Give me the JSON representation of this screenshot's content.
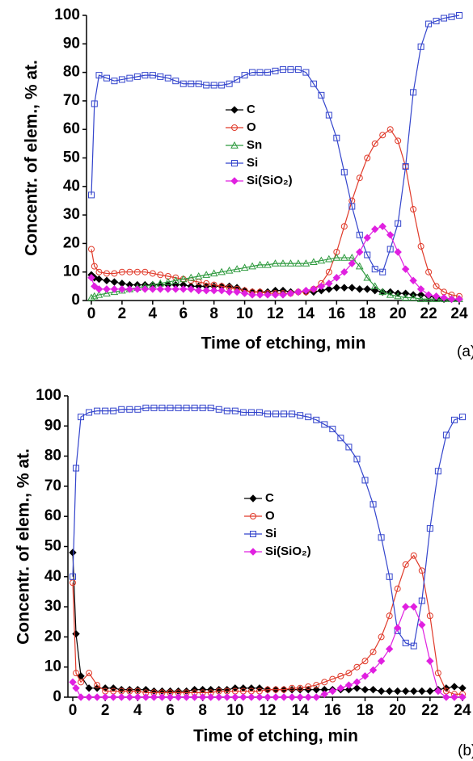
{
  "chart_data": [
    {
      "type": "line",
      "panel_label": "(a)",
      "xlabel": "Time of etching, min",
      "ylabel": "Concentr. of elem., % at.",
      "x": [
        0,
        0.2,
        0.5,
        1,
        1.5,
        2,
        2.5,
        3,
        3.5,
        4,
        4.5,
        5,
        5.5,
        6,
        6.5,
        7,
        7.5,
        8,
        8.5,
        9,
        9.5,
        10,
        10.5,
        11,
        11.5,
        12,
        12.5,
        13,
        13.5,
        14,
        14.5,
        15,
        15.5,
        16,
        16.5,
        17,
        17.5,
        18,
        18.5,
        19,
        19.5,
        20,
        20.5,
        21,
        21.5,
        22,
        22.5,
        23,
        23.5,
        24
      ],
      "xlim": [
        0,
        24
      ],
      "xticks": [
        0,
        2,
        4,
        6,
        8,
        10,
        12,
        14,
        16,
        18,
        20,
        22,
        24
      ],
      "ylim": [
        0,
        100
      ],
      "yticks": [
        0,
        10,
        20,
        30,
        40,
        50,
        60,
        70,
        80,
        90,
        100
      ],
      "legend": "center",
      "series": [
        {
          "name": "C",
          "color": "#000000",
          "marker": "diamond",
          "values": [
            9,
            8,
            7.5,
            7,
            6.5,
            6,
            5.5,
            5.5,
            5.5,
            5.5,
            5.5,
            5.5,
            5.5,
            5.5,
            5,
            5,
            5,
            5,
            5,
            5,
            4.5,
            3.5,
            3,
            3,
            3,
            3.5,
            3.5,
            3,
            3,
            3,
            3,
            3.5,
            4,
            4.5,
            4.5,
            4.5,
            4,
            4,
            3.5,
            3,
            3,
            2.5,
            2.5,
            2,
            2,
            1.5,
            1,
            0.5,
            0.5,
            0.5
          ]
        },
        {
          "name": "O",
          "color": "#e03a2a",
          "marker": "circle",
          "values": [
            18,
            12,
            10,
            9.5,
            9.5,
            10,
            10,
            10,
            10,
            9.5,
            9,
            8.5,
            8,
            7.5,
            7,
            6.5,
            6,
            5.5,
            5,
            4.5,
            4,
            3.5,
            3,
            3,
            2.5,
            2.5,
            2.5,
            2.5,
            3,
            3,
            4,
            6,
            10,
            17,
            26,
            35,
            43,
            50,
            55,
            58,
            60,
            56,
            47,
            32,
            19,
            10,
            5,
            3,
            2,
            1.5
          ]
        },
        {
          "name": "Sn",
          "color": "#2e9a3e",
          "marker": "triangle",
          "values": [
            1,
            1.5,
            2,
            2.5,
            3,
            3.5,
            4,
            4.5,
            5,
            5.5,
            6,
            6.5,
            7,
            7.5,
            8,
            8.5,
            9,
            9.5,
            10,
            10.5,
            11,
            11.5,
            12,
            12.5,
            12.5,
            13,
            13,
            13,
            13,
            13,
            13.5,
            14,
            14.5,
            15,
            15,
            15,
            12,
            8,
            5,
            3,
            2,
            1.5,
            1,
            1,
            0.5,
            0.5,
            0.5,
            0.5,
            0.5,
            0.5
          ]
        },
        {
          "name": "Si",
          "color": "#3344cc",
          "marker": "square",
          "values": [
            37,
            69,
            79,
            78,
            77,
            77.5,
            78,
            78.5,
            79,
            79,
            78.5,
            78,
            77,
            76,
            76,
            76,
            75.5,
            75.5,
            75.5,
            76,
            77.5,
            79,
            80,
            80,
            80,
            80.5,
            81,
            81,
            81,
            80,
            76,
            72,
            65,
            57,
            45,
            33,
            23,
            16,
            11,
            10,
            18,
            27,
            47,
            73,
            89,
            97,
            98,
            99,
            99.5,
            100
          ]
        },
        {
          "name": "Si(SiO₂)",
          "color": "#e020e0",
          "marker": "diamond",
          "values": [
            8,
            5,
            4,
            4,
            4,
            4,
            4,
            4,
            4,
            4,
            4,
            4,
            4,
            4,
            4,
            3.5,
            3.5,
            3.5,
            3.5,
            3,
            3,
            2.5,
            2,
            2,
            2,
            2,
            2,
            2.5,
            3,
            3.5,
            4,
            5,
            6,
            8,
            10,
            13,
            17,
            22,
            25,
            26,
            23,
            17,
            11,
            7,
            4,
            2,
            1.5,
            1,
            0.5,
            0.5
          ]
        }
      ]
    },
    {
      "type": "line",
      "panel_label": "(b)",
      "xlabel": "Time of etching, min",
      "ylabel": "Concentr. of elem., % at.",
      "x": [
        0,
        0.2,
        0.5,
        1,
        1.5,
        2,
        2.5,
        3,
        3.5,
        4,
        4.5,
        5,
        5.5,
        6,
        6.5,
        7,
        7.5,
        8,
        8.5,
        9,
        9.5,
        10,
        10.5,
        11,
        11.5,
        12,
        12.5,
        13,
        13.5,
        14,
        14.5,
        15,
        15.5,
        16,
        16.5,
        17,
        17.5,
        18,
        18.5,
        19,
        19.5,
        20,
        20.5,
        21,
        21.5,
        22,
        22.5,
        23,
        23.5,
        24
      ],
      "xlim": [
        0,
        24
      ],
      "xticks": [
        0,
        2,
        4,
        6,
        8,
        10,
        12,
        14,
        16,
        18,
        20,
        22,
        24
      ],
      "ylim": [
        0,
        100
      ],
      "yticks": [
        0,
        10,
        20,
        30,
        40,
        50,
        60,
        70,
        80,
        90,
        100
      ],
      "legend": "center",
      "series": [
        {
          "name": "C",
          "color": "#000000",
          "marker": "diamond",
          "values": [
            48,
            21,
            7,
            3,
            3,
            3,
            3,
            2.5,
            2.5,
            2.5,
            2.5,
            2,
            2,
            2,
            2,
            2,
            2.5,
            2.5,
            2.5,
            2.5,
            2.5,
            3,
            3,
            3,
            3,
            2.5,
            2.5,
            2.5,
            2.5,
            2.5,
            2.5,
            2.5,
            2.5,
            2.5,
            2.5,
            2.5,
            3,
            2.5,
            2.5,
            2,
            2,
            2,
            2,
            2,
            2,
            2,
            2.5,
            3,
            3.5,
            3
          ]
        },
        {
          "name": "O",
          "color": "#e03a2a",
          "marker": "circle",
          "values": [
            38,
            8,
            5,
            8,
            4,
            2,
            2,
            2,
            2,
            2,
            1.5,
            1.5,
            1.5,
            1.5,
            1.5,
            1.5,
            1.5,
            1.5,
            1.5,
            2,
            2,
            2,
            2,
            2,
            2,
            2.5,
            2.5,
            2.5,
            3,
            3,
            3.5,
            4,
            5,
            6,
            7,
            8,
            10,
            12,
            15,
            20,
            27,
            36,
            44,
            47,
            42,
            27,
            8,
            2,
            1,
            1
          ]
        },
        {
          "name": "Si",
          "color": "#3344cc",
          "marker": "square",
          "values": [
            40,
            76,
            93,
            94.5,
            95,
            95,
            95,
            95.5,
            95.5,
            95.5,
            96,
            96,
            96,
            96,
            96,
            96,
            96,
            96,
            96,
            95.5,
            95,
            95,
            94.5,
            94.5,
            94.5,
            94,
            94,
            94,
            94,
            93.5,
            93,
            92,
            90.5,
            89,
            86,
            83,
            79,
            72,
            64,
            53,
            40,
            22,
            18,
            17,
            32,
            56,
            75,
            87,
            92,
            93
          ]
        },
        {
          "name": "Si(SiO₂)",
          "color": "#e020e0",
          "marker": "diamond",
          "values": [
            5,
            3,
            0,
            0,
            0,
            0,
            0,
            0,
            0,
            0,
            0,
            0,
            0,
            0,
            0,
            0,
            0,
            0,
            0,
            0,
            0,
            0,
            0,
            0,
            0,
            0,
            0,
            0,
            0,
            0,
            0,
            0,
            1,
            2,
            3,
            4,
            5,
            7,
            9,
            12,
            16,
            23,
            30,
            30,
            24,
            12,
            2,
            0,
            0,
            0
          ]
        }
      ]
    }
  ]
}
